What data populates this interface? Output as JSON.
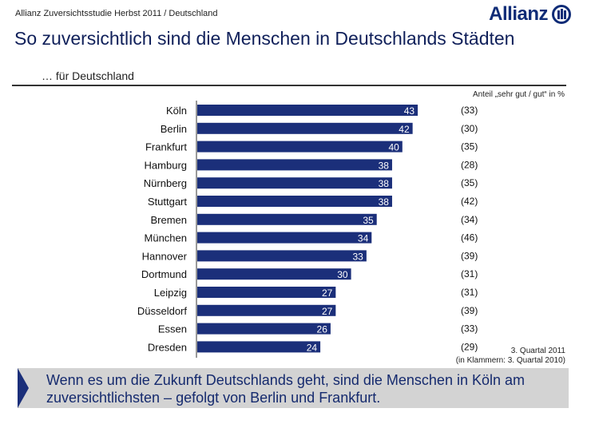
{
  "header": {
    "source": "Allianz Zuversichtsstudie Herbst 2011 / Deutschland",
    "logo_text": "Allianz"
  },
  "title": "So zuversichtlich sind die Menschen in Deutschlands Städten",
  "subtitle": "… für Deutschland",
  "colors": {
    "bar": "#1b2f7a",
    "title": "#10205a",
    "callout_bg": "#d3d3d3"
  },
  "chart_data": {
    "type": "bar",
    "orientation": "horizontal",
    "unit_label": "Anteil „sehr gut / gut“ in %",
    "categories": [
      "Köln",
      "Berlin",
      "Frankfurt",
      "Hamburg",
      "Nürnberg",
      "Stuttgart",
      "Bremen",
      "München",
      "Hannover",
      "Dortmund",
      "Leipzig",
      "Düsseldorf",
      "Essen",
      "Dresden"
    ],
    "series": [
      {
        "name": "3. Quartal 2011",
        "values": [
          43,
          42,
          40,
          38,
          38,
          38,
          35,
          34,
          33,
          30,
          27,
          27,
          26,
          24
        ]
      },
      {
        "name": "3. Quartal 2010",
        "values": [
          33,
          30,
          35,
          28,
          35,
          42,
          34,
          46,
          39,
          31,
          31,
          39,
          33,
          29
        ],
        "display": "bracketed"
      }
    ]
  },
  "footnote": {
    "line1": "3. Quartal 2011",
    "line2": "(in Klammern: 3. Quartal 2010)"
  },
  "callout": {
    "text": "Wenn es um die Zukunft Deutschlands geht, sind die Menschen in Köln am zuversichtlichsten – gefolgt von Berlin und Frankfurt."
  }
}
